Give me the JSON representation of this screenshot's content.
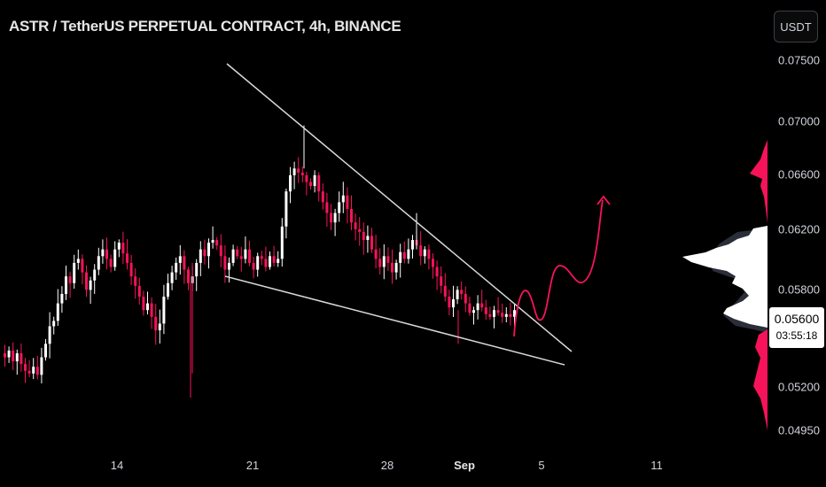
{
  "header": {
    "title": "ASTR / TetherUS PERPETUAL CONTRACT, 4h, BINANCE"
  },
  "currency_button": "USDT",
  "price_axis": {
    "ticks": [
      "0.07500",
      "0.07000",
      "0.06600",
      "0.06200",
      "0.05800",
      "0.05200",
      "0.04950"
    ],
    "last_price": "0.05600",
    "countdown": "03:55:18"
  },
  "time_axis": {
    "ticks": [
      {
        "label": "14",
        "bold": false
      },
      {
        "label": "21",
        "bold": false
      },
      {
        "label": "28",
        "bold": false
      },
      {
        "label": "Sep",
        "bold": true
      },
      {
        "label": "5",
        "bold": false
      },
      {
        "label": "11",
        "bold": false
      }
    ]
  },
  "colors": {
    "up": "#ffffff",
    "down": "#f7135a",
    "background": "#000000",
    "trendline": "#d9d9d9",
    "projection": "#f7135a"
  },
  "chart_data": {
    "type": "candlestick",
    "symbol": "ASTR/USDT Perpetual",
    "interval": "4h",
    "exchange": "BINANCE",
    "y_ticks": [
      0.075,
      0.07,
      0.066,
      0.062,
      0.058,
      0.056,
      0.052,
      0.0495
    ],
    "close_path": [
      0.0525,
      0.053,
      0.0522,
      0.0528,
      0.052,
      0.0515,
      0.0513,
      0.0518,
      0.0512,
      0.0525,
      0.0535,
      0.0548,
      0.0552,
      0.0565,
      0.0572,
      0.0585,
      0.058,
      0.0595,
      0.0598,
      0.0588,
      0.0575,
      0.0582,
      0.059,
      0.06,
      0.0605,
      0.0598,
      0.0592,
      0.0605,
      0.061,
      0.0602,
      0.0595,
      0.0585,
      0.0578,
      0.057,
      0.056,
      0.0565,
      0.0555,
      0.0545,
      0.055,
      0.057,
      0.058,
      0.0588,
      0.0595,
      0.06,
      0.059,
      0.058,
      0.0585,
      0.0595,
      0.0605,
      0.06,
      0.061,
      0.0612,
      0.0608,
      0.06,
      0.059,
      0.0595,
      0.0605,
      0.06,
      0.0598,
      0.0605,
      0.0595,
      0.059,
      0.06,
      0.0598,
      0.0592,
      0.06,
      0.0595,
      0.0598,
      0.0622,
      0.0648,
      0.066,
      0.0665,
      0.0662,
      0.066,
      0.0655,
      0.0652,
      0.066,
      0.0648,
      0.064,
      0.0632,
      0.0625,
      0.0632,
      0.064,
      0.0645,
      0.0635,
      0.0625,
      0.062,
      0.0618,
      0.0612,
      0.0615,
      0.0605,
      0.0598,
      0.0592,
      0.06,
      0.0595,
      0.0588,
      0.0595,
      0.0603,
      0.0598,
      0.0605,
      0.0612,
      0.0608,
      0.06,
      0.0605,
      0.0598,
      0.0592,
      0.0585,
      0.0578,
      0.057,
      0.0562,
      0.0568,
      0.0575,
      0.0572,
      0.0565,
      0.0558,
      0.056,
      0.0565,
      0.0562,
      0.0557,
      0.0555,
      0.056,
      0.0558,
      0.0555,
      0.0557,
      0.0555,
      0.056
    ],
    "wedge_upper_line": [
      {
        "date": "2023-08-16",
        "price": 0.0748
      },
      {
        "date": "2023-09-05",
        "price": 0.0541
      }
    ],
    "wedge_lower_line": [
      {
        "date": "2023-08-20",
        "price": 0.0586
      },
      {
        "date": "2023-09-05",
        "price": 0.0537
      }
    ],
    "projection": "bullish breakout path drawn upward from wedge apex"
  }
}
